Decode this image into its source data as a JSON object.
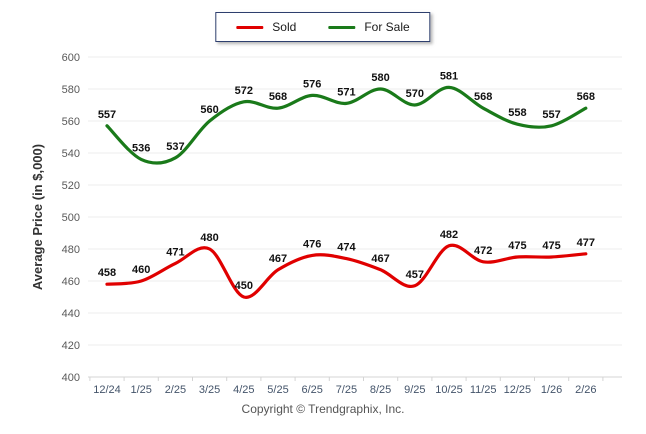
{
  "legend": {
    "sold": "Sold",
    "for_sale": "For Sale"
  },
  "footer": {
    "copyright": "Copyright © Trendgraphix, Inc."
  },
  "colors": {
    "sold": "#e00000",
    "for_sale": "#1a7a1a",
    "grid": "#ececec",
    "axis": "#d4d4d4",
    "y_tick_label": "#595959",
    "x_tick_label": "#44546a",
    "data_label": "#111111",
    "axis_title": "#333333",
    "legend_border": "#2e3f6e"
  },
  "chart_data": {
    "type": "line",
    "title": "",
    "xlabel": "",
    "ylabel": "Average Price (in $,000)",
    "categories": [
      "12/24",
      "1/25",
      "2/25",
      "3/25",
      "4/25",
      "5/25",
      "6/25",
      "7/25",
      "8/25",
      "9/25",
      "10/25",
      "11/25",
      "12/25",
      "1/26",
      "2/26"
    ],
    "series": [
      {
        "name": "Sold",
        "color": "#e00000",
        "values": [
          458,
          460,
          471,
          480,
          450,
          467,
          476,
          474,
          467,
          457,
          482,
          472,
          475,
          475,
          477
        ]
      },
      {
        "name": "For Sale",
        "color": "#1a7a1a",
        "values": [
          557,
          536,
          537,
          560,
          572,
          568,
          576,
          571,
          580,
          570,
          581,
          568,
          558,
          557,
          568
        ]
      }
    ],
    "ylim": [
      400,
      600
    ],
    "ytick_step": 20,
    "grid": true,
    "smooth": true,
    "legend_position": "top-center",
    "data_labels": true
  }
}
